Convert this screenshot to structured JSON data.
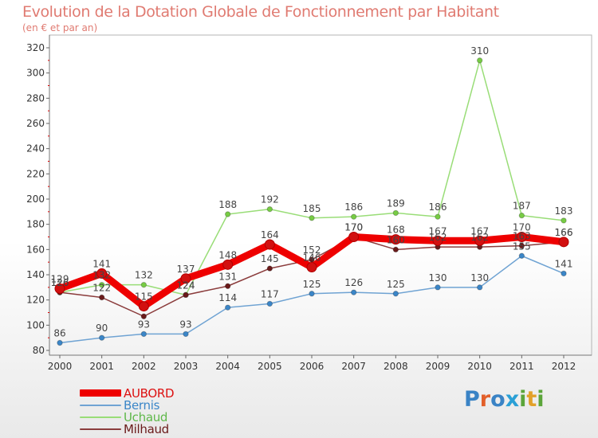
{
  "header": {
    "title": "Evolution de la Dotation Globale de Fonctionnement par Habitant",
    "subtitle": "(en € et par an)"
  },
  "logo": {
    "text": "Proxiti",
    "colors": [
      "#3a83c5",
      "#e25f2a",
      "#3a83c5",
      "#2ba0d6",
      "#5ba53a",
      "#e2a12a",
      "#5ba53a"
    ]
  },
  "chart_data": {
    "type": "line",
    "title": "Evolution de la Dotation Globale de Fonctionnement par Habitant",
    "subtitle": "(en € et par an)",
    "xlabel": "",
    "ylabel": "",
    "ylim": [
      80,
      320
    ],
    "yticks": [
      80,
      100,
      120,
      140,
      160,
      180,
      200,
      220,
      240,
      260,
      280,
      300,
      320
    ],
    "grid": false,
    "legend_position": "bottom-left",
    "x": [
      "2000",
      "2001",
      "2002",
      "2003",
      "2004",
      "2005",
      "2006",
      "2007",
      "2008",
      "2009",
      "2010",
      "2011",
      "2012"
    ],
    "series": [
      {
        "name": "AUBORD",
        "color": "#ee0000",
        "marker": "#d21010",
        "thick": true,
        "values": [
          129,
          141,
          115,
          137,
          148,
          164,
          146,
          170,
          168,
          167,
          167,
          170,
          166
        ]
      },
      {
        "name": "Bernis",
        "color": "#6fa3d3",
        "marker": "#3b86c8",
        "thick": false,
        "values": [
          86,
          90,
          93,
          93,
          114,
          117,
          125,
          126,
          125,
          130,
          130,
          155,
          141
        ]
      },
      {
        "name": "Uchaud",
        "color": "#99dd77",
        "marker": "#77cc44",
        "thick": false,
        "values": [
          126,
          132,
          132,
          124,
          188,
          192,
          185,
          186,
          189,
          186,
          310,
          187,
          183
        ]
      },
      {
        "name": "Milhaud",
        "color": "#8b3c3c",
        "marker": "#6a1a1a",
        "thick": false,
        "values": [
          126,
          122,
          107,
          124,
          131,
          145,
          152,
          170,
          160,
          162,
          162,
          163,
          166
        ]
      }
    ],
    "data_labels": [
      {
        "series": 0,
        "index": 0,
        "text": "129"
      },
      {
        "series": 0,
        "index": 1,
        "text": "141"
      },
      {
        "series": 0,
        "index": 2,
        "text": "115"
      },
      {
        "series": 0,
        "index": 3,
        "text": "137"
      },
      {
        "series": 0,
        "index": 4,
        "text": "148"
      },
      {
        "series": 0,
        "index": 5,
        "text": "164"
      },
      {
        "series": 0,
        "index": 6,
        "text": "146"
      },
      {
        "series": 0,
        "index": 7,
        "text": "170"
      },
      {
        "series": 0,
        "index": 8,
        "text": "168"
      },
      {
        "series": 0,
        "index": 9,
        "text": "167"
      },
      {
        "series": 0,
        "index": 10,
        "text": "167"
      },
      {
        "series": 0,
        "index": 11,
        "text": "170"
      },
      {
        "series": 0,
        "index": 12,
        "text": "166"
      },
      {
        "series": 1,
        "index": 0,
        "text": "86"
      },
      {
        "series": 1,
        "index": 1,
        "text": "90"
      },
      {
        "series": 1,
        "index": 2,
        "text": "93"
      },
      {
        "series": 1,
        "index": 3,
        "text": "93"
      },
      {
        "series": 1,
        "index": 4,
        "text": "114"
      },
      {
        "series": 1,
        "index": 5,
        "text": "117"
      },
      {
        "series": 1,
        "index": 6,
        "text": "125"
      },
      {
        "series": 1,
        "index": 7,
        "text": "126"
      },
      {
        "series": 1,
        "index": 8,
        "text": "125"
      },
      {
        "series": 1,
        "index": 9,
        "text": "130"
      },
      {
        "series": 1,
        "index": 10,
        "text": "130"
      },
      {
        "series": 1,
        "index": 11,
        "text": "155"
      },
      {
        "series": 1,
        "index": 12,
        "text": "141"
      },
      {
        "series": 2,
        "index": 0,
        "text": "126"
      },
      {
        "series": 2,
        "index": 1,
        "text": "132"
      },
      {
        "series": 2,
        "index": 2,
        "text": "132"
      },
      {
        "series": 2,
        "index": 3,
        "text": "124"
      },
      {
        "series": 2,
        "index": 4,
        "text": "188"
      },
      {
        "series": 2,
        "index": 5,
        "text": "192"
      },
      {
        "series": 2,
        "index": 6,
        "text": "185"
      },
      {
        "series": 2,
        "index": 7,
        "text": "186"
      },
      {
        "series": 2,
        "index": 8,
        "text": "189"
      },
      {
        "series": 2,
        "index": 9,
        "text": "186"
      },
      {
        "series": 2,
        "index": 10,
        "text": "310"
      },
      {
        "series": 2,
        "index": 11,
        "text": "187"
      },
      {
        "series": 2,
        "index": 12,
        "text": "183"
      },
      {
        "series": 3,
        "index": 0,
        "text": "126"
      },
      {
        "series": 3,
        "index": 1,
        "text": "122"
      },
      {
        "series": 3,
        "index": 3,
        "text": "124"
      },
      {
        "series": 3,
        "index": 5,
        "text": "145"
      },
      {
        "series": 3,
        "index": 6,
        "text": "152"
      },
      {
        "series": 3,
        "index": 7,
        "text": "170"
      },
      {
        "series": 3,
        "index": 9,
        "text": "162"
      },
      {
        "series": 3,
        "index": 10,
        "text": "162"
      },
      {
        "series": 3,
        "index": 12,
        "text": "166"
      },
      {
        "series": 3,
        "index": 4,
        "text": "131"
      },
      {
        "series": 3,
        "index": 8,
        "text": "160"
      },
      {
        "series": 3,
        "index": 11,
        "text": "163"
      }
    ]
  }
}
